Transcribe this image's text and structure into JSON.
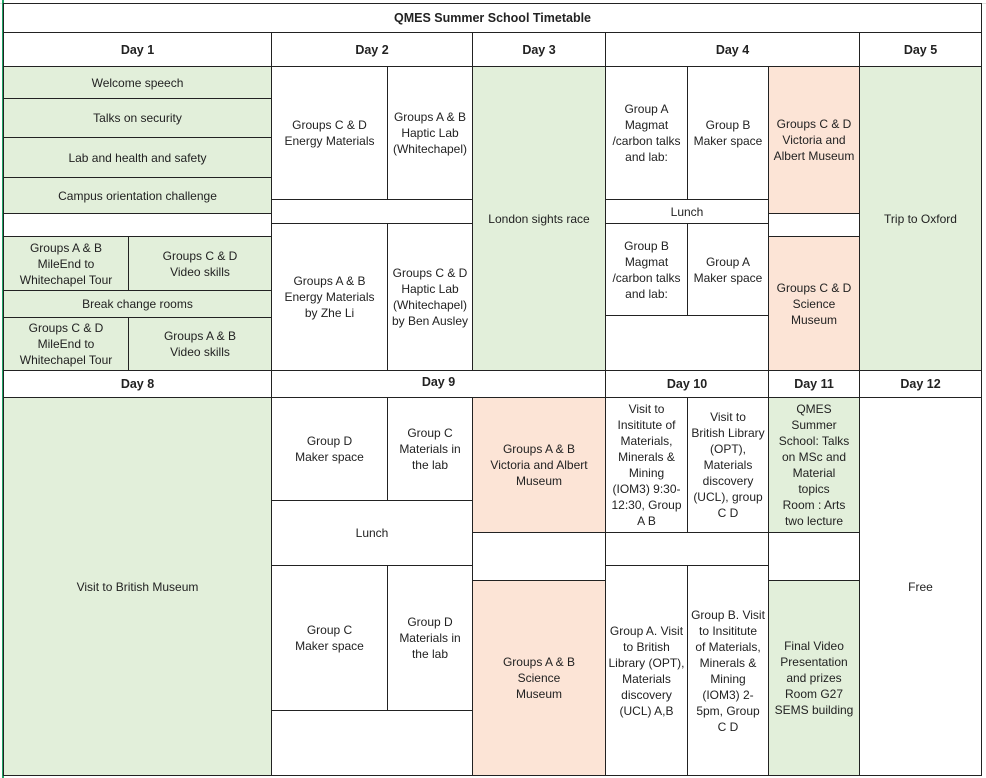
{
  "title": "QMES Summer School Timetable",
  "colors": {
    "green": "#e2efda",
    "peach": "#fce4d6"
  },
  "days": {
    "d1": "Day 1",
    "d2": "Day 2",
    "d3": "Day 3",
    "d4": "Day 4",
    "d5": "Day 5",
    "d8": "Day 8",
    "d9": "Day 9",
    "d10": "Day 10",
    "d11": "Day 11",
    "d12": "Day 12"
  },
  "day1": {
    "welcome": "Welcome speech",
    "security": "Talks on security",
    "safety": "Lab and health and safety",
    "campus": "Campus orientation challenge",
    "tour_ab": "Groups A & B\nMileEnd to\nWhitechapel Tour",
    "video_cd": "Groups C & D\nVideo skills",
    "break": "Break change rooms",
    "tour_cd": "Groups C & D\nMileEnd to\nWhitechapel Tour",
    "video_ab": "Groups A & B\nVideo skills"
  },
  "day2": {
    "energy_cd": "Groups C & D\nEnergy Materials",
    "haptic_ab": "Groups A & B\nHaptic Lab\n(Whitechapel)",
    "energy_ab": "Groups A & B\nEnergy Materials\nby Zhe Li",
    "haptic_cd": "Groups C & D\nHaptic Lab\n(Whitechapel)\nby Ben Ausley"
  },
  "day3": {
    "race": "London  sights race"
  },
  "day4": {
    "magmat_a": "Group A\nMagmat\n/carbon talks\nand lab:",
    "maker_b": "Group B\nMaker space",
    "va_cd": "Groups C & D\nVictoria  and\nAlbert Museum",
    "lunch": "Lunch",
    "magmat_b": "Group B\nMagmat\n/carbon talks\nand lab:",
    "maker_a": "Group A\nMaker space",
    "science_cd": "Groups C & D\nScience\nMuseum"
  },
  "day5": {
    "oxford": "Trip to Oxford"
  },
  "day8": {
    "museum": "Visit to British Museum"
  },
  "day9": {
    "maker_d": "Group D\nMaker space",
    "lab_c": "Group C\nMaterials in\nthe lab",
    "va_ab": "Groups A & B\nVictoria and  Albert\nMuseum",
    "lunch": "Lunch",
    "maker_c": "Group C\nMaker space",
    "lab_d": "Group D\nMaterials in\nthe lab",
    "science_ab": "Groups A & B\nScience\nMuseum"
  },
  "day10": {
    "iom_ab": "Visit to\nInsititute of\nMaterials,\nMinerals &\nMining\n(IOM3) 9:30-\n12:30, Group\nA B",
    "bl_cd": "Visit to\nBritish Library\n(OPT),\nMaterials\ndiscovery\n(UCL), group\nC D",
    "bl_a": "Group A. Visit\nto British\nLibrary (OPT),\nMaterials\ndiscovery\n(UCL) A,B",
    "iom_b": "Group B. Visit\nto Insititute\nof Materials,\nMinerals &\nMining\n(IOM3) 2-\n5pm, Group\nC D"
  },
  "day11": {
    "talks": "QMES\nSummer\nSchool: Talks\non MSc and\nMaterial\ntopics\nRoom : Arts\ntwo lecture",
    "final": "Final Video\nPresentation\nand prizes\nRoom G27\nSEMS building"
  },
  "day12": {
    "free": "Free"
  }
}
